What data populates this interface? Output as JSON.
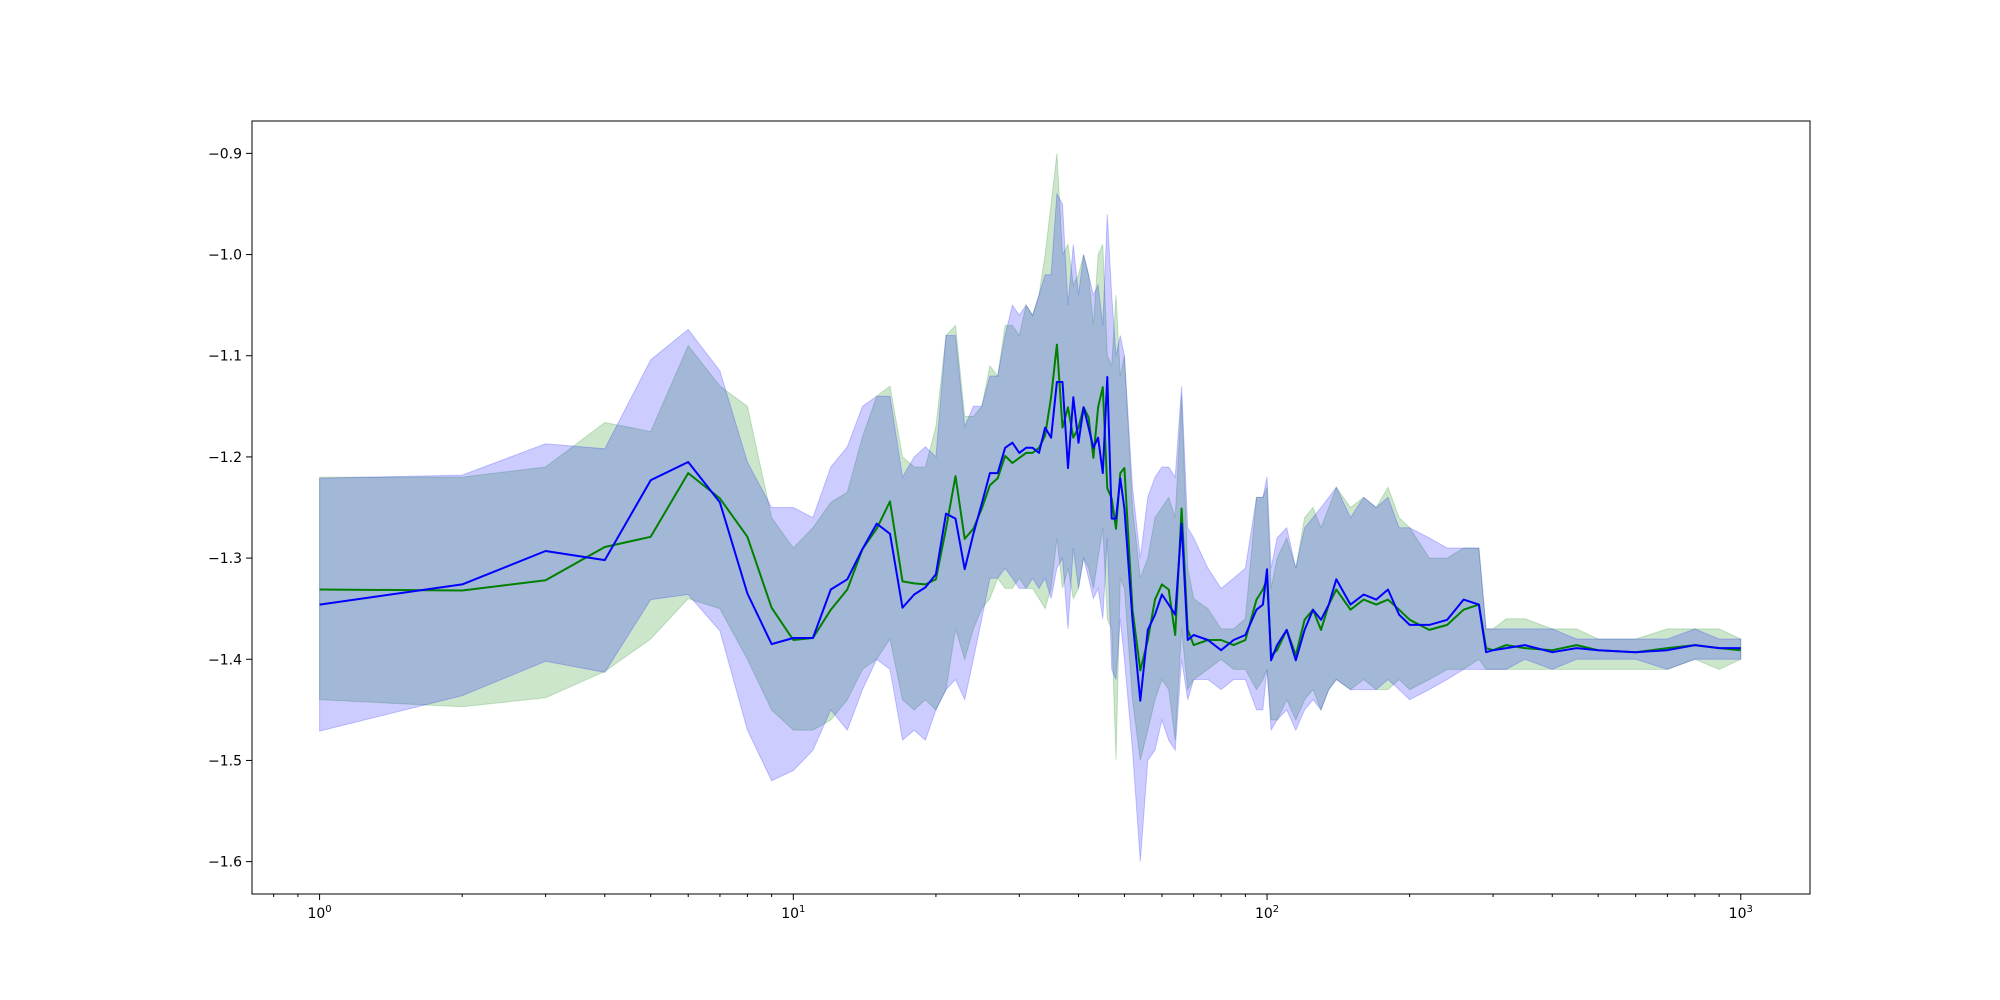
{
  "chart_data": {
    "type": "line",
    "x_scale": "log",
    "xlim": [
      0.72,
      1400
    ],
    "ylim": [
      -1.632,
      -0.868
    ],
    "grid": false,
    "x_ticks": [
      {
        "value": 1,
        "base": "10",
        "exp": "0"
      },
      {
        "value": 10,
        "base": "10",
        "exp": "1"
      },
      {
        "value": 100,
        "base": "10",
        "exp": "2"
      },
      {
        "value": 1000,
        "base": "10",
        "exp": "3"
      }
    ],
    "y_ticks": [
      {
        "value": -0.9,
        "label": "−0.9"
      },
      {
        "value": -1.0,
        "label": "−1.0"
      },
      {
        "value": -1.1,
        "label": "−1.1"
      },
      {
        "value": -1.2,
        "label": "−1.2"
      },
      {
        "value": -1.3,
        "label": "−1.3"
      },
      {
        "value": -1.4,
        "label": "−1.4"
      },
      {
        "value": -1.5,
        "label": "−1.5"
      },
      {
        "value": -1.6,
        "label": "−1.6"
      }
    ],
    "colors": {
      "series_a": "#008000",
      "series_b": "#0000ff"
    },
    "series": [
      {
        "key": "green",
        "x": [
          1,
          2,
          3,
          4,
          5,
          6,
          7,
          8,
          9,
          10,
          11,
          12,
          13,
          14,
          15,
          16,
          17,
          18,
          19,
          20,
          21,
          22,
          23,
          24,
          25,
          26,
          27,
          28,
          29,
          30,
          31,
          32,
          33,
          34,
          35,
          36,
          37,
          38,
          39,
          40,
          41,
          42,
          43,
          44,
          45,
          46,
          47,
          48,
          49,
          50,
          52,
          54,
          56,
          58,
          60,
          62,
          64,
          66,
          68,
          70,
          75,
          80,
          85,
          90,
          95,
          98,
          100,
          102,
          105,
          110,
          115,
          120,
          125,
          130,
          135,
          140,
          150,
          160,
          170,
          180,
          190,
          200,
          220,
          240,
          260,
          280,
          290,
          300,
          320,
          350,
          400,
          450,
          500,
          600,
          700,
          800,
          900,
          1000
        ],
        "y": [
          -1.331,
          -1.332,
          -1.322,
          -1.289,
          -1.279,
          -1.216,
          -1.241,
          -1.279,
          -1.349,
          -1.381,
          -1.379,
          -1.351,
          -1.331,
          -1.291,
          -1.271,
          -1.244,
          -1.323,
          -1.325,
          -1.326,
          -1.321,
          -1.271,
          -1.219,
          -1.281,
          -1.271,
          -1.251,
          -1.228,
          -1.221,
          -1.199,
          -1.206,
          -1.201,
          -1.196,
          -1.196,
          -1.191,
          -1.179,
          -1.141,
          -1.089,
          -1.171,
          -1.151,
          -1.181,
          -1.171,
          -1.151,
          -1.161,
          -1.201,
          -1.151,
          -1.131,
          -1.231,
          -1.241,
          -1.271,
          -1.216,
          -1.211,
          -1.351,
          -1.411,
          -1.381,
          -1.341,
          -1.326,
          -1.331,
          -1.376,
          -1.251,
          -1.371,
          -1.386,
          -1.381,
          -1.381,
          -1.386,
          -1.381,
          -1.341,
          -1.331,
          -1.321,
          -1.396,
          -1.391,
          -1.371,
          -1.396,
          -1.361,
          -1.351,
          -1.371,
          -1.346,
          -1.331,
          -1.351,
          -1.341,
          -1.346,
          -1.341,
          -1.351,
          -1.361,
          -1.371,
          -1.366,
          -1.351,
          -1.346,
          -1.389,
          -1.391,
          -1.386,
          -1.389,
          -1.391,
          -1.386,
          -1.391,
          -1.393,
          -1.389,
          -1.386,
          -1.389,
          -1.391
        ],
        "upper": [
          -1.22,
          -1.22,
          -1.21,
          -1.166,
          -1.175,
          -1.09,
          -1.13,
          -1.15,
          -1.26,
          -1.29,
          -1.27,
          -1.245,
          -1.235,
          -1.18,
          -1.14,
          -1.13,
          -1.2,
          -1.21,
          -1.21,
          -1.17,
          -1.08,
          -1.07,
          -1.16,
          -1.16,
          -1.15,
          -1.11,
          -1.12,
          -1.07,
          -1.07,
          -1.08,
          -1.05,
          -1.06,
          -1.04,
          -1.0,
          -0.95,
          -0.9,
          -1.0,
          -0.99,
          -1.03,
          -1.02,
          -1.0,
          -1.02,
          -1.07,
          -1.0,
          -0.99,
          -1.1,
          -1.11,
          -1.04,
          -1.12,
          -1.1,
          -1.25,
          -1.32,
          -1.3,
          -1.26,
          -1.25,
          -1.24,
          -1.26,
          -1.14,
          -1.31,
          -1.34,
          -1.35,
          -1.37,
          -1.37,
          -1.36,
          -1.24,
          -1.24,
          -1.23,
          -1.33,
          -1.3,
          -1.28,
          -1.31,
          -1.26,
          -1.25,
          -1.27,
          -1.25,
          -1.23,
          -1.25,
          -1.24,
          -1.25,
          -1.23,
          -1.26,
          -1.27,
          -1.3,
          -1.3,
          -1.29,
          -1.29,
          -1.37,
          -1.37,
          -1.36,
          -1.36,
          -1.37,
          -1.37,
          -1.38,
          -1.38,
          -1.37,
          -1.37,
          -1.37,
          -1.38
        ],
        "lower": [
          -1.44,
          -1.447,
          -1.438,
          -1.412,
          -1.38,
          -1.34,
          -1.35,
          -1.4,
          -1.45,
          -1.47,
          -1.47,
          -1.46,
          -1.44,
          -1.41,
          -1.4,
          -1.38,
          -1.44,
          -1.45,
          -1.44,
          -1.45,
          -1.43,
          -1.37,
          -1.4,
          -1.37,
          -1.35,
          -1.34,
          -1.32,
          -1.33,
          -1.33,
          -1.32,
          -1.33,
          -1.33,
          -1.34,
          -1.35,
          -1.33,
          -1.28,
          -1.33,
          -1.31,
          -1.34,
          -1.33,
          -1.3,
          -1.31,
          -1.33,
          -1.3,
          -1.27,
          -1.36,
          -1.37,
          -1.5,
          -1.32,
          -1.33,
          -1.44,
          -1.5,
          -1.47,
          -1.44,
          -1.42,
          -1.43,
          -1.48,
          -1.37,
          -1.43,
          -1.42,
          -1.41,
          -1.4,
          -1.41,
          -1.41,
          -1.43,
          -1.42,
          -1.41,
          -1.46,
          -1.46,
          -1.44,
          -1.46,
          -1.44,
          -1.43,
          -1.45,
          -1.43,
          -1.42,
          -1.43,
          -1.42,
          -1.43,
          -1.43,
          -1.42,
          -1.43,
          -1.42,
          -1.41,
          -1.41,
          -1.4,
          -1.41,
          -1.41,
          -1.41,
          -1.41,
          -1.41,
          -1.41,
          -1.41,
          -1.41,
          -1.41,
          -1.4,
          -1.41,
          -1.4
        ]
      },
      {
        "key": "blue",
        "x": [
          1,
          2,
          3,
          4,
          5,
          6,
          7,
          8,
          9,
          10,
          11,
          12,
          13,
          14,
          15,
          16,
          17,
          18,
          19,
          20,
          21,
          22,
          23,
          24,
          25,
          26,
          27,
          28,
          29,
          30,
          31,
          32,
          33,
          34,
          35,
          36,
          37,
          38,
          39,
          40,
          41,
          42,
          43,
          44,
          45,
          46,
          47,
          48,
          49,
          50,
          52,
          54,
          56,
          58,
          60,
          62,
          64,
          66,
          68,
          70,
          75,
          80,
          85,
          90,
          95,
          98,
          100,
          102,
          105,
          110,
          115,
          120,
          125,
          130,
          135,
          140,
          150,
          160,
          170,
          180,
          190,
          200,
          220,
          240,
          260,
          280,
          290,
          300,
          320,
          350,
          400,
          450,
          500,
          600,
          700,
          800,
          900,
          1000
        ],
        "y": [
          -1.346,
          -1.326,
          -1.293,
          -1.302,
          -1.223,
          -1.205,
          -1.245,
          -1.335,
          -1.385,
          -1.379,
          -1.379,
          -1.331,
          -1.321,
          -1.291,
          -1.266,
          -1.276,
          -1.349,
          -1.336,
          -1.329,
          -1.316,
          -1.256,
          -1.261,
          -1.311,
          -1.276,
          -1.246,
          -1.216,
          -1.216,
          -1.191,
          -1.186,
          -1.196,
          -1.191,
          -1.191,
          -1.196,
          -1.171,
          -1.181,
          -1.126,
          -1.126,
          -1.211,
          -1.141,
          -1.186,
          -1.151,
          -1.171,
          -1.191,
          -1.181,
          -1.216,
          -1.121,
          -1.261,
          -1.261,
          -1.221,
          -1.251,
          -1.361,
          -1.441,
          -1.371,
          -1.356,
          -1.336,
          -1.346,
          -1.356,
          -1.266,
          -1.381,
          -1.376,
          -1.381,
          -1.391,
          -1.381,
          -1.376,
          -1.351,
          -1.346,
          -1.311,
          -1.401,
          -1.386,
          -1.371,
          -1.401,
          -1.371,
          -1.351,
          -1.361,
          -1.346,
          -1.321,
          -1.346,
          -1.336,
          -1.341,
          -1.331,
          -1.356,
          -1.366,
          -1.366,
          -1.361,
          -1.341,
          -1.346,
          -1.393,
          -1.391,
          -1.389,
          -1.386,
          -1.393,
          -1.389,
          -1.391,
          -1.393,
          -1.391,
          -1.386,
          -1.389,
          -1.389
        ],
        "upper": [
          -1.221,
          -1.218,
          -1.187,
          -1.192,
          -1.104,
          -1.074,
          -1.115,
          -1.205,
          -1.25,
          -1.25,
          -1.26,
          -1.21,
          -1.19,
          -1.15,
          -1.14,
          -1.14,
          -1.22,
          -1.2,
          -1.19,
          -1.2,
          -1.08,
          -1.08,
          -1.17,
          -1.15,
          -1.15,
          -1.12,
          -1.12,
          -1.08,
          -1.05,
          -1.06,
          -1.05,
          -1.06,
          -1.04,
          -1.02,
          -1.02,
          -0.94,
          -0.95,
          -1.05,
          -0.99,
          -1.04,
          -1.0,
          -1.02,
          -1.04,
          -1.03,
          -1.07,
          -0.96,
          -1.04,
          -1.1,
          -1.08,
          -1.1,
          -1.23,
          -1.3,
          -1.24,
          -1.22,
          -1.21,
          -1.21,
          -1.22,
          -1.13,
          -1.27,
          -1.28,
          -1.31,
          -1.33,
          -1.32,
          -1.31,
          -1.24,
          -1.24,
          -1.22,
          -1.31,
          -1.28,
          -1.27,
          -1.31,
          -1.27,
          -1.26,
          -1.25,
          -1.24,
          -1.23,
          -1.26,
          -1.24,
          -1.25,
          -1.24,
          -1.27,
          -1.27,
          -1.28,
          -1.29,
          -1.29,
          -1.29,
          -1.37,
          -1.37,
          -1.37,
          -1.37,
          -1.37,
          -1.38,
          -1.38,
          -1.38,
          -1.38,
          -1.37,
          -1.38,
          -1.38
        ],
        "lower": [
          -1.471,
          -1.436,
          -1.402,
          -1.413,
          -1.341,
          -1.336,
          -1.372,
          -1.47,
          -1.52,
          -1.51,
          -1.49,
          -1.45,
          -1.47,
          -1.43,
          -1.4,
          -1.41,
          -1.48,
          -1.47,
          -1.48,
          -1.45,
          -1.43,
          -1.42,
          -1.44,
          -1.4,
          -1.36,
          -1.32,
          -1.32,
          -1.31,
          -1.32,
          -1.33,
          -1.33,
          -1.32,
          -1.33,
          -1.32,
          -1.34,
          -1.31,
          -1.3,
          -1.37,
          -1.29,
          -1.33,
          -1.3,
          -1.32,
          -1.34,
          -1.33,
          -1.36,
          -1.28,
          -1.41,
          -1.42,
          -1.36,
          -1.4,
          -1.49,
          -1.6,
          -1.5,
          -1.49,
          -1.46,
          -1.48,
          -1.49,
          -1.4,
          -1.44,
          -1.42,
          -1.42,
          -1.43,
          -1.42,
          -1.42,
          -1.45,
          -1.45,
          -1.41,
          -1.47,
          -1.46,
          -1.45,
          -1.47,
          -1.45,
          -1.44,
          -1.45,
          -1.43,
          -1.42,
          -1.43,
          -1.43,
          -1.43,
          -1.42,
          -1.43,
          -1.44,
          -1.43,
          -1.42,
          -1.41,
          -1.41,
          -1.41,
          -1.41,
          -1.41,
          -1.4,
          -1.41,
          -1.4,
          -1.4,
          -1.4,
          -1.41,
          -1.4,
          -1.4,
          -1.4
        ]
      }
    ]
  }
}
